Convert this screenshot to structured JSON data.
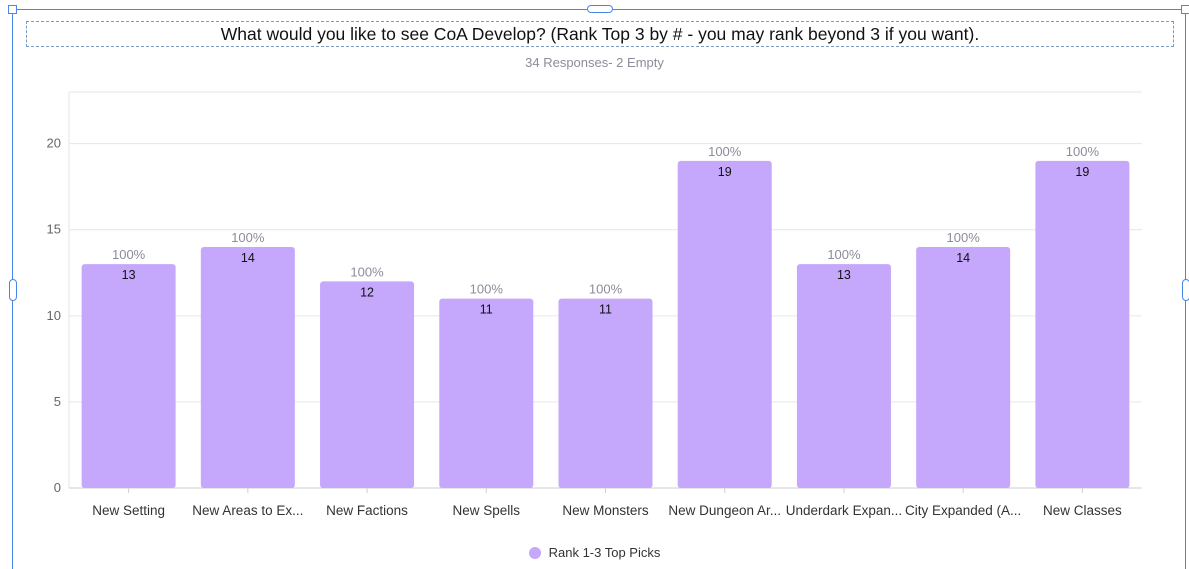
{
  "header": {
    "title": "What would you like to see CoA Develop? (Rank Top 3 by # - you may rank beyond 3 if you want).",
    "subtitle": "34 Responses- 2 Empty"
  },
  "colors": {
    "bar": "#c5a8fc",
    "grid": "#e6e6e6",
    "axis_text": "#666666",
    "pct_text": "#8c8c9a",
    "value_text": "#111111"
  },
  "chart_data": {
    "type": "bar",
    "title": "What would you like to see CoA Develop? (Rank Top 3 by # - you may rank beyond 3 if you want).",
    "xlabel": "",
    "ylabel": "",
    "categories": [
      "New Setting",
      "New Areas to Ex...",
      "New Factions",
      "New Spells",
      "New Monsters",
      "New Dungeon Ar...",
      "Underdark Expan...",
      "City Expanded (A...",
      "New Classes"
    ],
    "series": [
      {
        "name": "Rank 1-3 Top Picks",
        "values": [
          13,
          14,
          12,
          11,
          11,
          19,
          13,
          14,
          19
        ],
        "percent_labels": [
          "100%",
          "100%",
          "100%",
          "100%",
          "100%",
          "100%",
          "100%",
          "100%",
          "100%"
        ]
      }
    ],
    "ylim": [
      0,
      23
    ],
    "yticks": [
      0,
      5,
      10,
      15,
      20
    ],
    "grid": true,
    "legend": "bottom-center"
  }
}
